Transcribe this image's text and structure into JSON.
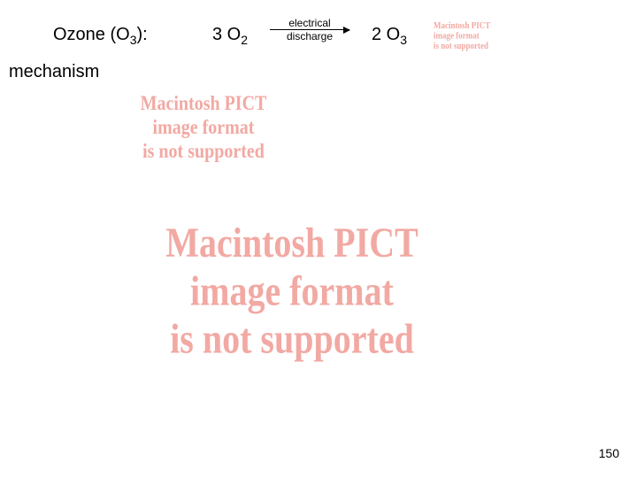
{
  "equation": {
    "ozone_label_pre": "Ozone (O",
    "ozone_label_sub": "3",
    "ozone_label_post": "):",
    "reactant_coef": "3 O",
    "reactant_sub": "2",
    "arrow_top": "electrical",
    "arrow_bottom": "discharge",
    "product_coef": "2 O",
    "product_sub": "3"
  },
  "mechanism_label": "mechanism",
  "pict_error": {
    "line1": "Macintosh PICT",
    "line2": "image format",
    "line3": "is not supported"
  },
  "page_number": "150",
  "colors": {
    "pict_text": "#f2a9a3",
    "text": "#000000",
    "bg": "#ffffff"
  }
}
